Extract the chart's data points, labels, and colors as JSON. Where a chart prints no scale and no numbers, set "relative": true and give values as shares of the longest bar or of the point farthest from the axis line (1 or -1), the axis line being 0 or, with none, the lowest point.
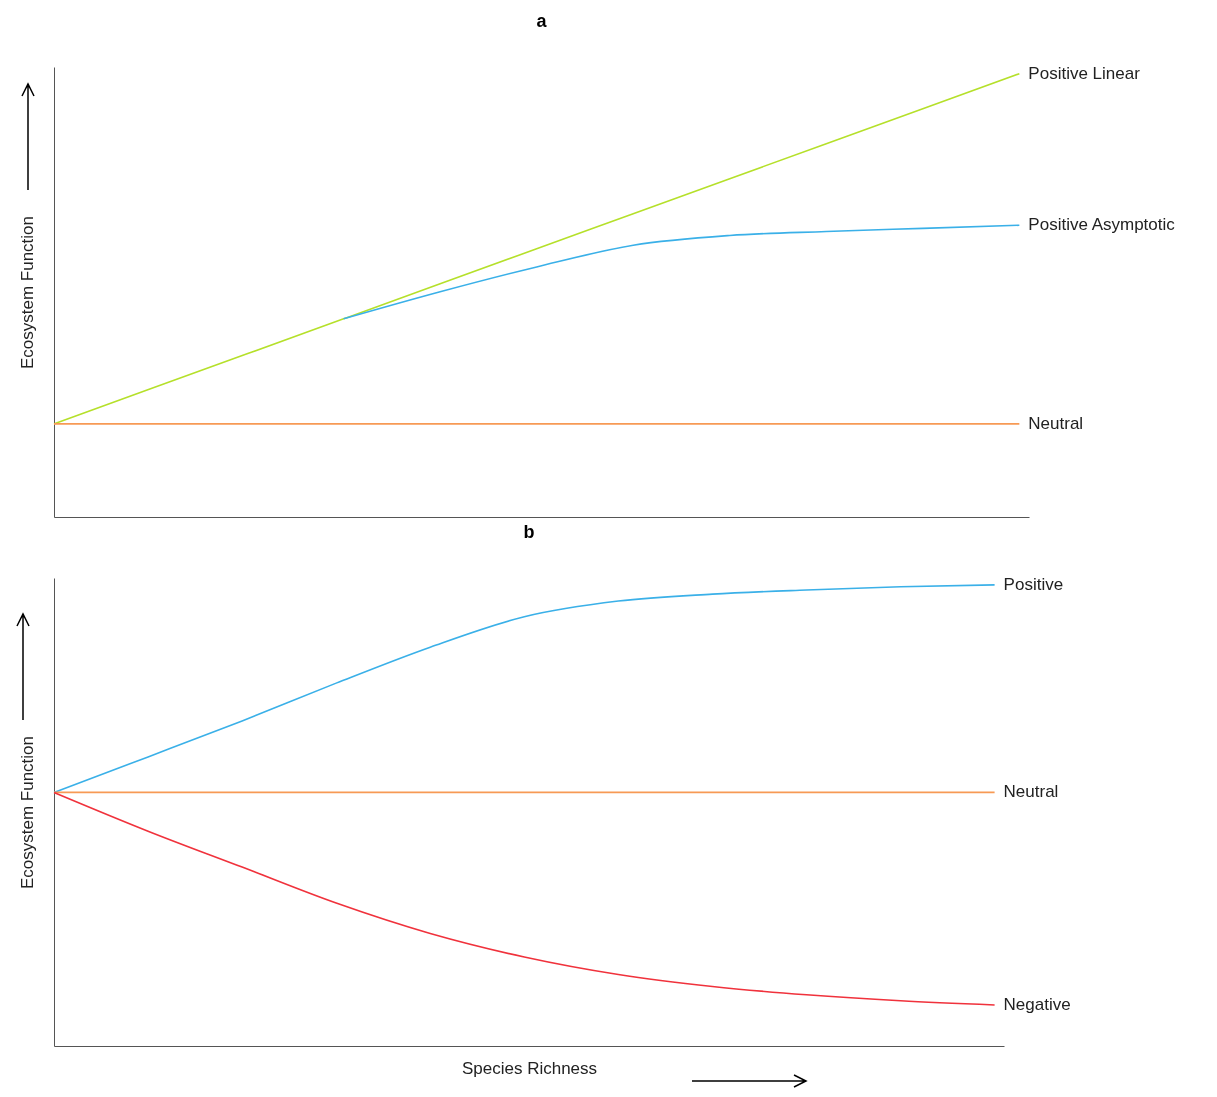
{
  "chart_data": [
    {
      "type": "line",
      "title": "a",
      "ylabel": "Ecosystem Function",
      "relative": true,
      "legend": false,
      "grid": false,
      "tick_labels": false,
      "categories": [
        null,
        null,
        null,
        null,
        null,
        null,
        null,
        null,
        null,
        null,
        null
      ],
      "series": [
        {
          "name": "Positive Linear",
          "color": "#b5e02a",
          "values": [
            0.21,
            0.289,
            0.368,
            0.447,
            0.526,
            0.605,
            0.684,
            0.763,
            0.842,
            0.921,
            1
          ]
        },
        {
          "name": "Positive Asymptotic",
          "color": "#3ab0e8",
          "values": [
            null,
            null,
            null,
            0.447,
            0.508,
            0.564,
            0.613,
            0.635,
            0.644,
            0.651,
            0.658
          ]
        },
        {
          "name": "Neutral",
          "color": "#f79a55",
          "values": [
            0.21,
            0.21,
            0.21,
            0.21,
            0.21,
            0.21,
            0.21,
            0.21,
            0.21,
            0.21,
            0.21
          ]
        }
      ]
    },
    {
      "type": "line",
      "title": "b",
      "xlabel": "Species Richness",
      "ylabel": "Ecosystem Function",
      "relative": true,
      "legend": false,
      "grid": false,
      "tick_labels": false,
      "categories": [
        null,
        null,
        null,
        null,
        null,
        null,
        null,
        null,
        null,
        null,
        null
      ],
      "series": [
        {
          "name": "Positive",
          "color": "#3ab0e8",
          "values": [
            0.55,
            0.627,
            0.705,
            0.787,
            0.865,
            0.931,
            0.965,
            0.98,
            0.989,
            0.996,
            1
          ]
        },
        {
          "name": "Neutral",
          "color": "#f79a55",
          "values": [
            0.55,
            0.55,
            0.55,
            0.55,
            0.55,
            0.55,
            0.55,
            0.55,
            0.55,
            0.55,
            0.55
          ]
        },
        {
          "name": "Negative",
          "color": "#f0323c",
          "values": [
            0.55,
            0.466,
            0.388,
            0.31,
            0.244,
            0.193,
            0.155,
            0.129,
            0.111,
            0.098,
            0.089
          ]
        }
      ]
    }
  ]
}
